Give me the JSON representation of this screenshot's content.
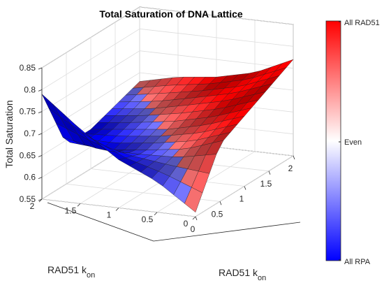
{
  "chart_data": {
    "type": "surface",
    "title": "Total Saturation of DNA Lattice",
    "xlabel_main": "RAD51 k",
    "xlabel_sub": "on",
    "ylabel_main": "RAD51 k",
    "ylabel_sub": "on",
    "zlabel": "Total Saturation",
    "xlim": [
      0,
      2
    ],
    "ylim": [
      0,
      2
    ],
    "zlim": [
      0.55,
      0.85
    ],
    "x_ticks": [
      0,
      0.5,
      1,
      1.5,
      2
    ],
    "x_tick_labels": [
      "0",
      "0.5",
      "1",
      "1.5",
      "2"
    ],
    "y_ticks": [
      0,
      0.5,
      1,
      1.5,
      2
    ],
    "y_tick_labels": [
      "0",
      "0.5",
      "1",
      "1.5",
      "2"
    ],
    "z_ticks": [
      0.55,
      0.6,
      0.65,
      0.7,
      0.75,
      0.8,
      0.85
    ],
    "z_tick_labels": [
      "0.55",
      "0.6",
      "0.65",
      "0.7",
      "0.75",
      "0.8",
      "0.85"
    ],
    "grid": true,
    "colorbar": {
      "labels": [
        "All RAD51",
        "Even",
        "All RPA"
      ],
      "colors": {
        "top": "#ff0000",
        "middle": "#ffffff",
        "bottom": "#0000ff"
      }
    },
    "surface_samples": {
      "note_x": "columns = first RAD51 kon axis (x)",
      "grid_x": [
        0,
        0.5,
        1,
        1.5,
        2
      ],
      "grid_y": [
        0,
        0.5,
        1,
        1.5,
        2
      ],
      "z": [
        [
          0.56,
          0.68,
          0.71,
          0.74,
          0.77
        ],
        [
          0.62,
          0.65,
          0.68,
          0.71,
          0.73
        ],
        [
          0.66,
          0.64,
          0.66,
          0.69,
          0.71
        ],
        [
          0.72,
          0.63,
          0.65,
          0.67,
          0.7
        ],
        [
          0.79,
          0.64,
          0.64,
          0.66,
          0.68
        ]
      ]
    }
  }
}
